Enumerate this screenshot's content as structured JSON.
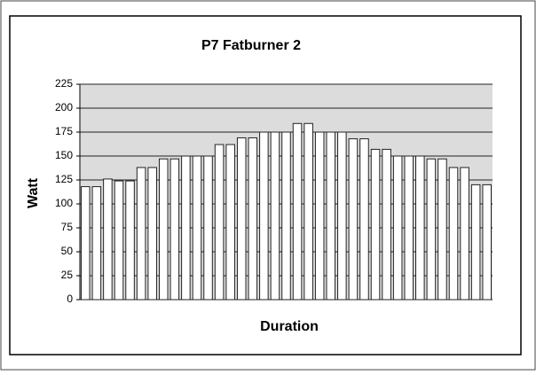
{
  "chart_data": {
    "type": "bar",
    "title": "P7 Fatburner 2",
    "x_label": "Duration",
    "y_label": "Watt",
    "categories": [
      null,
      null,
      null,
      null,
      null,
      null,
      null,
      null,
      null,
      null,
      null,
      null,
      null,
      null,
      null,
      null,
      null,
      null,
      null,
      null,
      null,
      null,
      null,
      null,
      null,
      null,
      null,
      null,
      null,
      null,
      null,
      null,
      null,
      null,
      null,
      null,
      null
    ],
    "values": [
      118,
      118,
      126,
      124,
      124,
      138,
      138,
      147,
      147,
      150,
      150,
      150,
      162,
      162,
      169,
      169,
      175,
      175,
      175,
      184,
      184,
      175,
      175,
      175,
      168,
      168,
      157,
      157,
      150,
      150,
      150,
      147,
      147,
      138,
      138,
      120,
      120
    ],
    "color": "#ffffff",
    "ylim": [
      0,
      225
    ],
    "yticks": [
      0,
      25,
      50,
      75,
      100,
      125,
      150,
      175,
      200,
      225
    ],
    "grid": true
  }
}
